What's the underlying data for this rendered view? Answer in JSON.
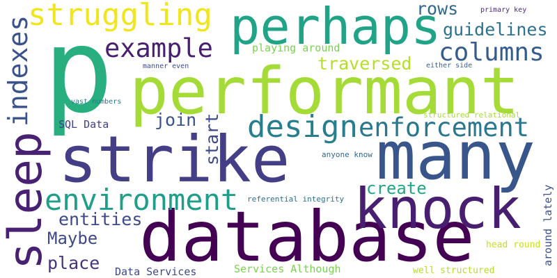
{
  "cloud": {
    "words": [
      {
        "text": "p",
        "color": "#29af7f"
      },
      {
        "text": "performant",
        "color": "#a5db36"
      },
      {
        "text": "strike",
        "color": "#433e85"
      },
      {
        "text": "database",
        "color": "#440154"
      },
      {
        "text": "many",
        "color": "#39568c"
      },
      {
        "text": "perhaps",
        "color": "#20a386"
      },
      {
        "text": "sleep",
        "color": "#482173"
      },
      {
        "text": "struggling",
        "color": "#f1e51d"
      },
      {
        "text": "knock",
        "color": "#481f70"
      },
      {
        "text": "design",
        "color": "#277f8e"
      },
      {
        "text": "enforcement",
        "color": "#2a788e"
      },
      {
        "text": "environment",
        "color": "#1f9e89"
      },
      {
        "text": "indexes",
        "color": "#3b528b"
      },
      {
        "text": "example",
        "color": "#481f70"
      },
      {
        "text": "columns",
        "color": "#365c8d"
      },
      {
        "text": "guidelines",
        "color": "#2c728e"
      },
      {
        "text": "rows",
        "color": "#31688e"
      },
      {
        "text": "traversed",
        "color": "#b5de2b"
      },
      {
        "text": "create",
        "color": "#22a884"
      },
      {
        "text": "entities",
        "color": "#3e4989"
      },
      {
        "text": "place",
        "color": "#46327e"
      },
      {
        "text": "Maybe",
        "color": "#3e4989"
      },
      {
        "text": "join",
        "color": "#3b528b"
      },
      {
        "text": "start",
        "color": "#3e4989"
      },
      {
        "text": "playing around",
        "color": "#7ad151"
      },
      {
        "text": "SQL Data",
        "color": "#424086"
      },
      {
        "text": "Data Services",
        "color": "#3e4989"
      },
      {
        "text": "Services Although",
        "color": "#7ad151"
      },
      {
        "text": "well structured",
        "color": "#b5de2b"
      },
      {
        "text": "around lately",
        "color": "#3b528b"
      },
      {
        "text": "head round",
        "color": "#c8e020"
      },
      {
        "text": "referential integrity",
        "color": "#2d708e"
      },
      {
        "text": "structured relational",
        "color": "#a5db36"
      },
      {
        "text": "anyone know",
        "color": "#31688e"
      },
      {
        "text": "primary key",
        "color": "#482878"
      },
      {
        "text": "either side",
        "color": "#355f8d"
      },
      {
        "text": "manner even",
        "color": "#3e4989"
      },
      {
        "text": "vast numbers",
        "color": "#2a788e"
      }
    ]
  }
}
